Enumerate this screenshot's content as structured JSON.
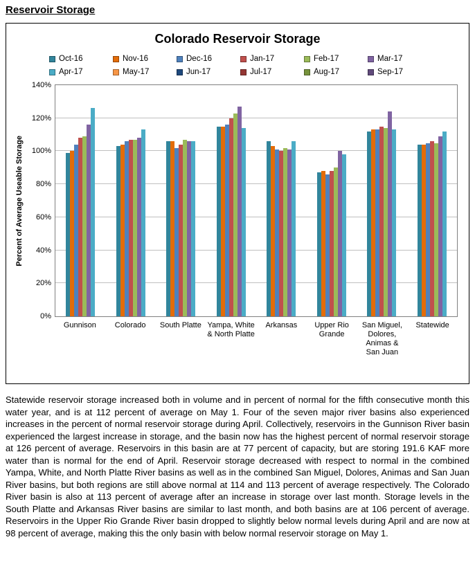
{
  "page": {
    "title": "Reservoir Storage"
  },
  "chart_data": {
    "type": "bar",
    "title": "Colorado Reservoir Storage",
    "ylabel": "Percent of Average Useable Storage",
    "ylim": [
      0,
      140
    ],
    "ytick_step": 20,
    "ytick_format": "percent",
    "grid": true,
    "legend_position": "top",
    "categories": [
      "Gunnison",
      "Colorado",
      "South Platte",
      "Yampa, White & North Platte",
      "Arkansas",
      "Upper Rio Grande",
      "San Miguel, Dolores, Animas & San Juan",
      "Statewide"
    ],
    "legend": [
      {
        "label": "Oct-16",
        "color": "#31859C"
      },
      {
        "label": "Nov-16",
        "color": "#E36C09"
      },
      {
        "label": "Dec-16",
        "color": "#4F81BD"
      },
      {
        "label": "Jan-17",
        "color": "#C0504D"
      },
      {
        "label": "Feb-17",
        "color": "#9BBB59"
      },
      {
        "label": "Mar-17",
        "color": "#8064A2"
      },
      {
        "label": "Apr-17",
        "color": "#4BACC6"
      },
      {
        "label": "May-17",
        "color": "#F79646"
      },
      {
        "label": "Jun-17",
        "color": "#1F497D"
      },
      {
        "label": "Jul-17",
        "color": "#943634"
      },
      {
        "label": "Aug-17",
        "color": "#77933C"
      },
      {
        "label": "Sep-17",
        "color": "#604A7B"
      }
    ],
    "series": [
      {
        "name": "Oct-16",
        "color": "#31859C",
        "values": [
          99,
          103,
          106,
          115,
          106,
          87,
          112,
          104
        ]
      },
      {
        "name": "Nov-16",
        "color": "#E36C09",
        "values": [
          100,
          104,
          106,
          115,
          103,
          88,
          113,
          104
        ]
      },
      {
        "name": "Dec-16",
        "color": "#4F81BD",
        "values": [
          104,
          106,
          102,
          116,
          101,
          86,
          113,
          105
        ]
      },
      {
        "name": "Jan-17",
        "color": "#C0504D",
        "values": [
          108,
          107,
          104,
          120,
          100,
          88,
          115,
          106
        ]
      },
      {
        "name": "Feb-17",
        "color": "#9BBB59",
        "values": [
          109,
          107,
          107,
          123,
          102,
          90,
          114,
          105
        ]
      },
      {
        "name": "Mar-17",
        "color": "#8064A2",
        "values": [
          116,
          108,
          106,
          127,
          101,
          100,
          124,
          109
        ]
      },
      {
        "name": "Apr-17",
        "color": "#4BACC6",
        "values": [
          126,
          113,
          106,
          114,
          106,
          98,
          113,
          112
        ]
      }
    ]
  },
  "paragraph": "Statewide reservoir storage increased both in volume and in percent of normal for the fifth consecutive month this water year, and is at 112 percent of average on May 1. Four of the seven major river basins also experienced increases in the percent of normal reservoir storage during April. Collectively, reservoirs in the Gunnison River basin experienced the largest increase in storage, and the basin now has the highest percent of normal reservoir storage at 126 percent of average. Reservoirs in this basin are at 77 percent of capacity, but are storing 191.6 KAF more water than is normal for the end of April. Reservoir storage decreased with respect to normal in the combined Yampa, White, and North Platte River basins as well as in the combined San Miguel, Dolores, Animas and San Juan River basins, but both regions are still above normal at 114 and 113 percent of average respectively. The Colorado River basin is also at 113 percent of average after an increase in storage over last month. Storage levels in the South Platte and Arkansas River basins are similar to last month, and both basins are at 106 percent of average. Reservoirs in the Upper Rio Grande River basin dropped to slightly below normal levels during April and are now at 98 percent of average, making this the only basin with below normal reservoir storage on May 1."
}
